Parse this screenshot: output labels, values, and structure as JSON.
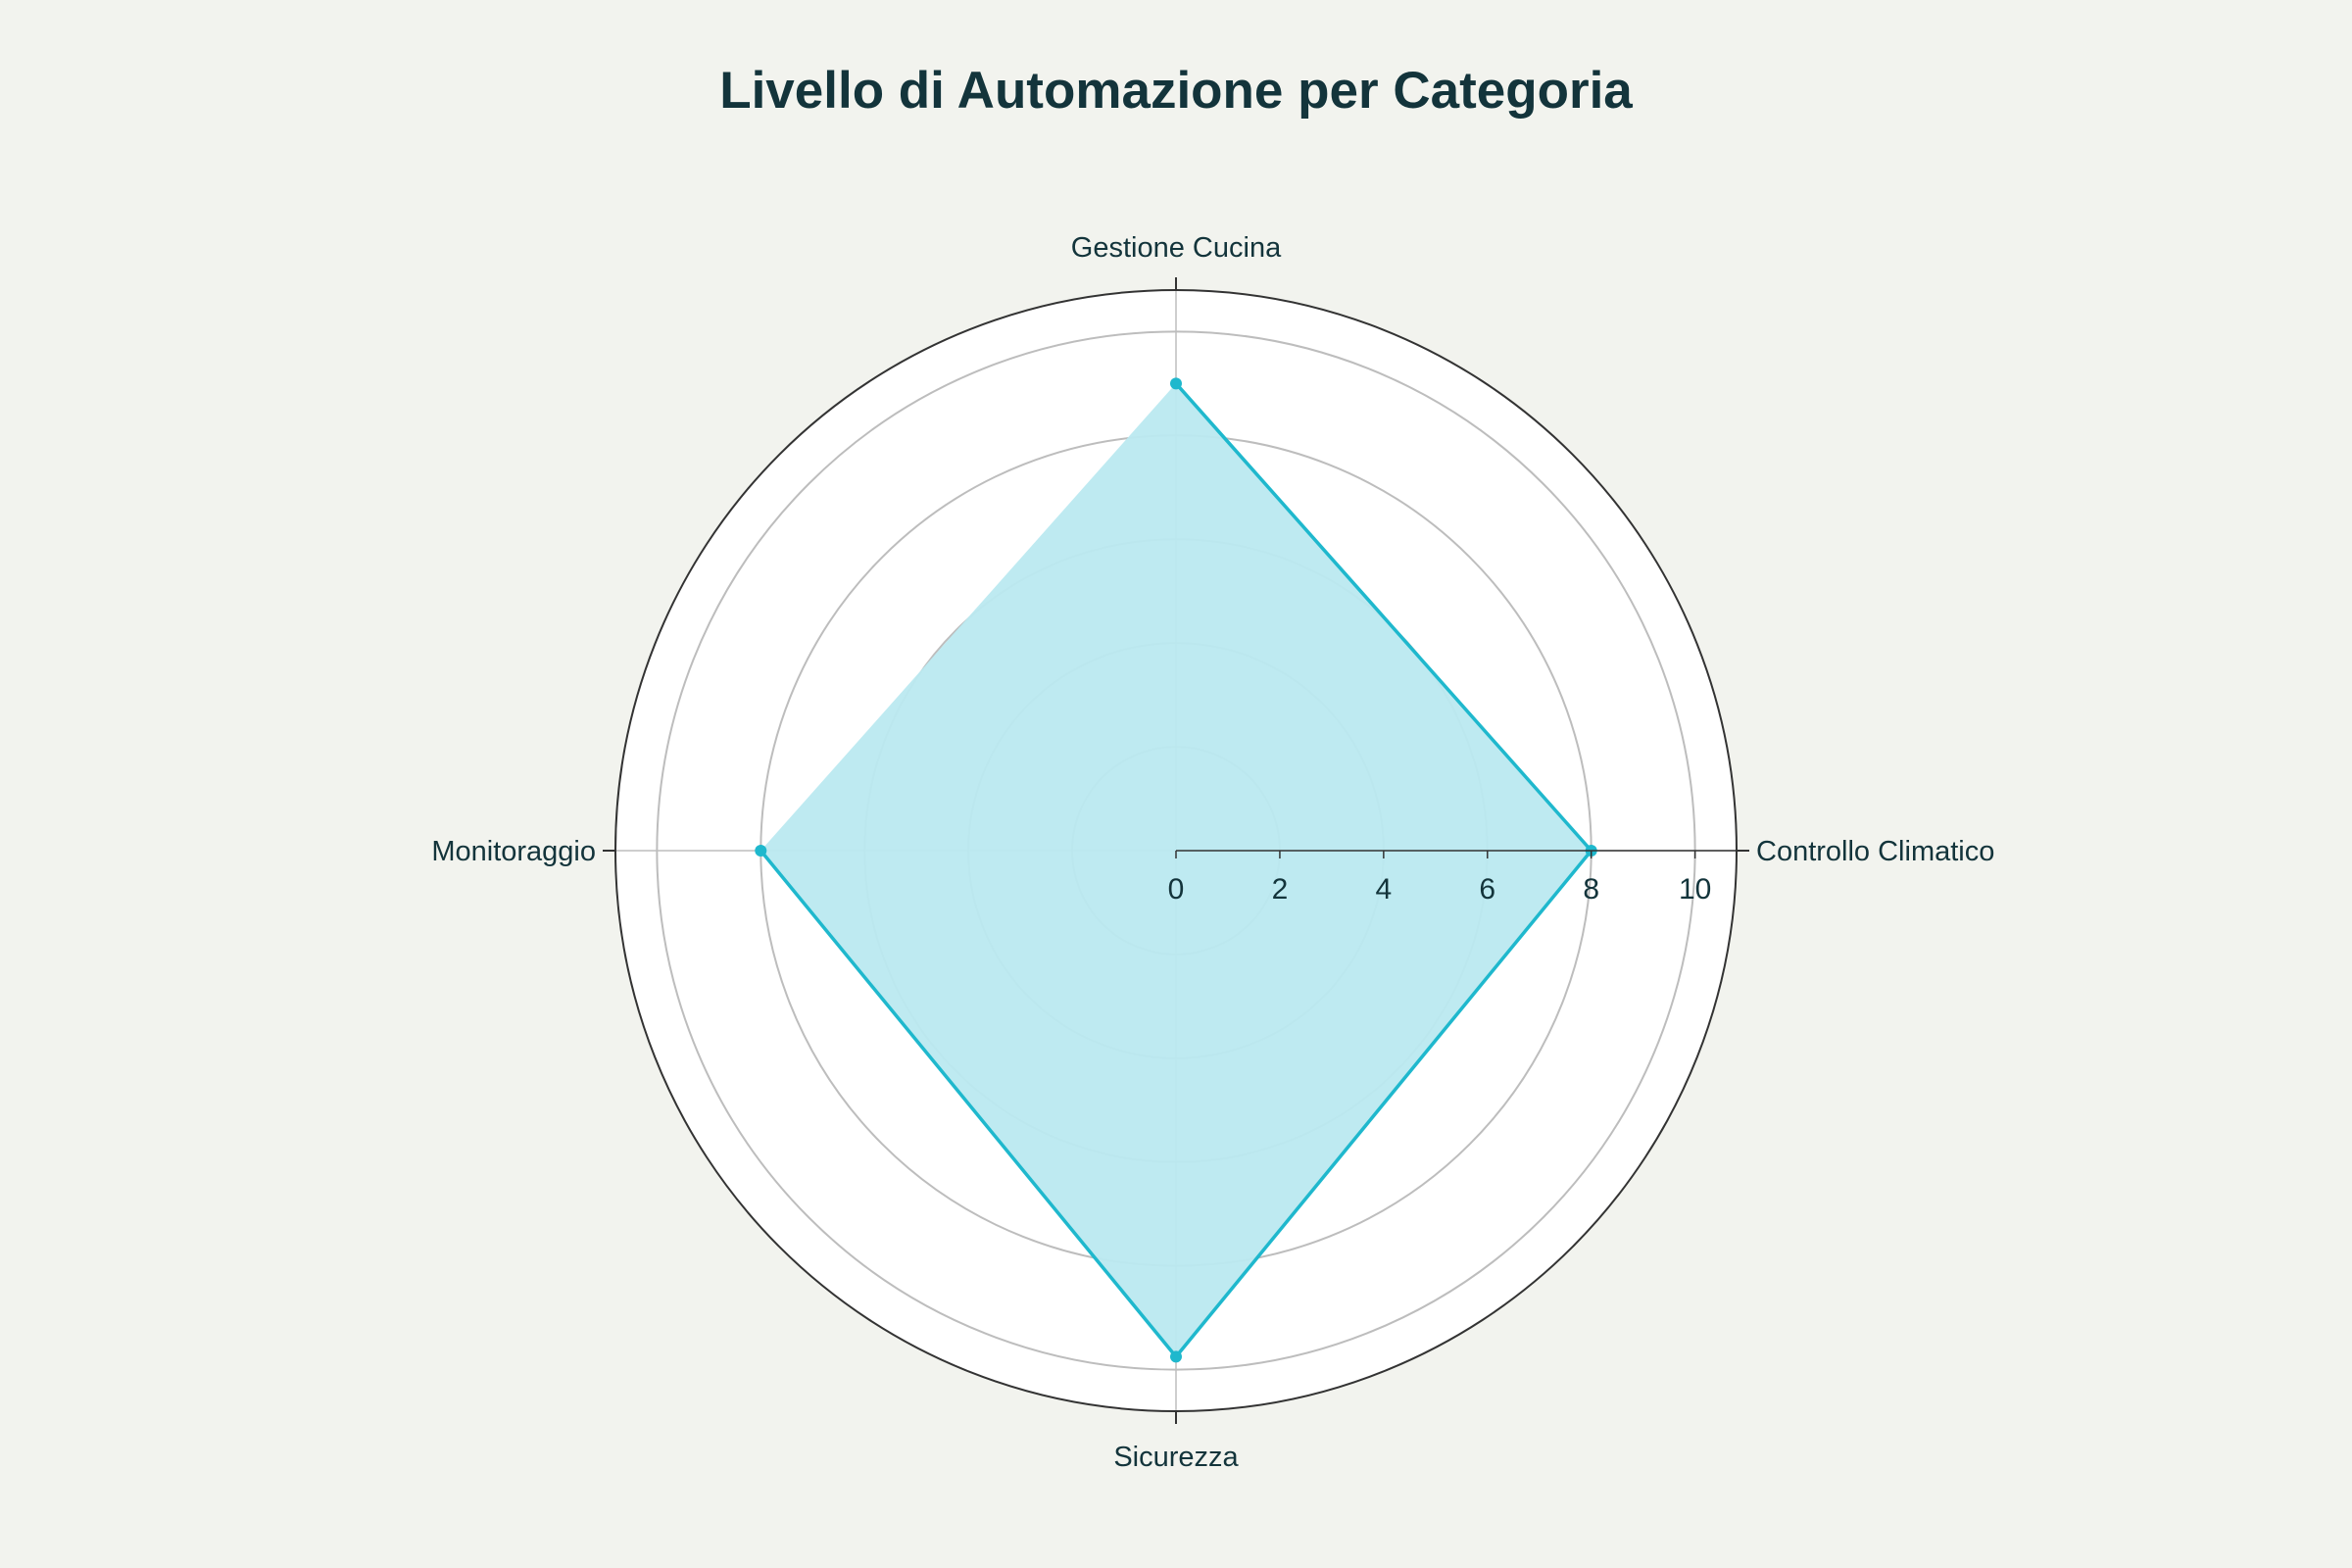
{
  "chart_data": {
    "type": "radar",
    "title": "Livello di Automazione per Categoria",
    "categories": [
      "Gestione Cucina",
      "Controllo Climatico",
      "Sicurezza",
      "Monitoraggio"
    ],
    "series": [
      {
        "values": [
          9,
          8,
          9.75,
          8
        ]
      }
    ],
    "radial_range": [
      0,
      10.8
    ],
    "radial_ticks": [
      0,
      2,
      4,
      6,
      8,
      10
    ],
    "radial_tick_labels": [
      "0",
      "2",
      "4",
      "6",
      "8",
      "10"
    ],
    "grid": true,
    "legend": "none",
    "colors": {
      "line": "#1fb8cd",
      "fill": "#bbe9f0",
      "plot_background": "#ffffff",
      "page_background": "#f2f3ee",
      "gridline": "#bdbdbd",
      "outline": "#333333",
      "text": "#13343b"
    }
  }
}
